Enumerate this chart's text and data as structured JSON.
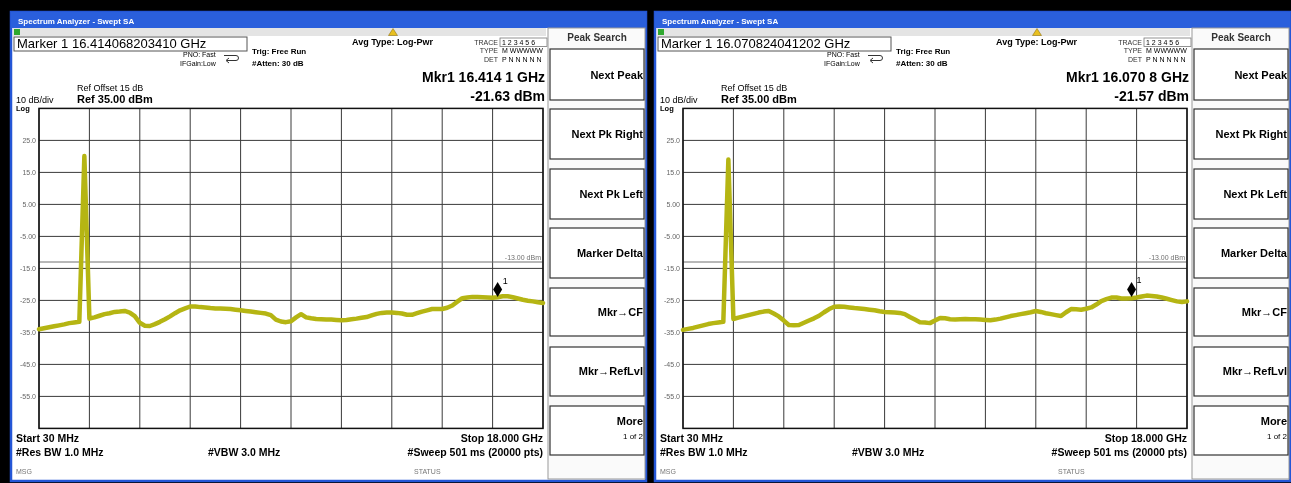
{
  "chart_data": [
    {
      "type": "line",
      "title": "Spectrum Analyzer - Swept SA",
      "ylim": [
        -65,
        35
      ],
      "categories": [
        null,
        null,
        null,
        null,
        null,
        null,
        null,
        null,
        null,
        null,
        null,
        null,
        null,
        null,
        null,
        null,
        null,
        null,
        null,
        null,
        null,
        null,
        null,
        null,
        null,
        null,
        null,
        null,
        null,
        null,
        null,
        null,
        null,
        null,
        null,
        null,
        null,
        null,
        null,
        null,
        null,
        null,
        null,
        null,
        null,
        null,
        null,
        null,
        null,
        null,
        null,
        null,
        null,
        null,
        null,
        null,
        null,
        null,
        null,
        null,
        null,
        null,
        null,
        null,
        null,
        null,
        null,
        null,
        null,
        null,
        null,
        null,
        null,
        null,
        null,
        null,
        null,
        null,
        null,
        null,
        null,
        null,
        null,
        null,
        null,
        null,
        null,
        null,
        null,
        null,
        null,
        null,
        null,
        null,
        null,
        null,
        null,
        null,
        null,
        null,
        null
      ],
      "yticks": [
        {
          "value": 25,
          "label": "25.0"
        },
        {
          "value": 15,
          "label": "15.0"
        },
        {
          "value": 5,
          "label": "5.00"
        },
        {
          "value": -5,
          "label": "-5.00"
        },
        {
          "value": -15,
          "label": "-15.0"
        },
        {
          "value": -25,
          "label": "-25.0"
        },
        {
          "value": -35,
          "label": "-35.0"
        },
        {
          "value": -45,
          "label": "-45.0"
        },
        {
          "value": -55,
          "label": "-55.0"
        }
      ],
      "grid": true,
      "tick_labels": "y",
      "series": [
        {
          "color": "#b5b513",
          "values": [
            -34.0,
            -33.7,
            -33.4,
            -33.1,
            -32.8,
            -32.5,
            -32.1,
            -31.9,
            -31.7,
            20.1,
            -30.7,
            -30.3,
            -29.8,
            -29.3,
            -29.0,
            -28.6,
            -28.5,
            -28.3,
            -28.8,
            -29.9,
            -32.0,
            -32.9,
            -33.0,
            -32.4,
            -31.7,
            -30.9,
            -30.0,
            -29.0,
            -28.1,
            -27.5,
            -26.9,
            -26.9,
            -27.1,
            -27.2,
            -27.4,
            -27.5,
            -27.5,
            -27.6,
            -27.7,
            -27.9,
            -28.1,
            -28.3,
            -28.5,
            -28.7,
            -28.9,
            -29.1,
            -29.6,
            -31.0,
            -31.6,
            -31.8,
            -31.5,
            -30.3,
            -29.3,
            -30.3,
            -30.6,
            -30.8,
            -30.9,
            -31.0,
            -31.0,
            -31.1,
            -31.2,
            -31.1,
            -30.9,
            -30.7,
            -30.4,
            -30.2,
            -29.7,
            -29.2,
            -28.9,
            -28.8,
            -28.8,
            -28.9,
            -29.1,
            -29.5,
            -29.5,
            -29.0,
            -28.5,
            -28.1,
            -27.7,
            -27.7,
            -27.7,
            -27.3,
            -26.6,
            -25.4,
            -24.3,
            -24.1,
            -23.9,
            -23.9,
            -24.0,
            -24.1,
            -24.2,
            -24.0,
            -23.7,
            -23.7,
            -24.0,
            -24.4,
            -24.8,
            -25.1,
            -25.3,
            -25.6,
            -25.8
          ]
        },
        {
          "type": "scatter",
          "name": "1",
          "color": "#000000",
          "marker": "diamond",
          "values": [
            null,
            null,
            null,
            null,
            null,
            null,
            null,
            null,
            null,
            null,
            null,
            null,
            null,
            null,
            null,
            null,
            null,
            null,
            null,
            null,
            null,
            null,
            null,
            null,
            null,
            null,
            null,
            null,
            null,
            null,
            null,
            null,
            null,
            null,
            null,
            null,
            null,
            null,
            null,
            null,
            null,
            null,
            null,
            null,
            null,
            null,
            null,
            null,
            null,
            null,
            null,
            null,
            null,
            null,
            null,
            null,
            null,
            null,
            null,
            null,
            null,
            null,
            null,
            null,
            null,
            null,
            null,
            null,
            null,
            null,
            null,
            null,
            null,
            null,
            null,
            null,
            null,
            null,
            null,
            null,
            null,
            null,
            null,
            null,
            null,
            null,
            null,
            null,
            null,
            null,
            null,
            -21.63,
            null,
            null,
            null,
            null,
            null,
            null,
            null,
            null,
            null
          ]
        }
      ],
      "ref_lines": [
        {
          "axis": "y",
          "value": -13,
          "label": "-13.00 dBm",
          "color": "#707070"
        }
      ],
      "annotations": [
        "Marker 1 16.414068203410 GHz",
        "PNO: Fast",
        "IFGain:Low",
        "Trig: Free Run",
        "#Atten: 30 dB",
        "Avg Type: Log-Pwr",
        "TRACE",
        "1 2 3 4 5 6",
        "TYPE",
        "M WWWWW",
        "DET",
        "P N N N N N",
        "Ref Offset 15 dB",
        "10 dB/div",
        "Ref 35.00 dBm",
        "Log",
        "Mkr1 16.414 1 GHz",
        "-21.63 dBm",
        "Start 30 MHz",
        "Stop 18.000 GHz",
        "#Res BW 1.0 MHz",
        "#VBW 3.0 MHz",
        "#Sweep  501 ms (20000 pts)",
        "MSG",
        "STATUS",
        "Peak Search",
        "Next Peak",
        "Next Pk Right",
        "Next Pk Left",
        "Marker Delta",
        "Mkr→CF",
        "Mkr→RefLvl",
        "More",
        "1 of 2"
      ]
    },
    {
      "type": "line",
      "title": "Spectrum Analyzer - Swept SA",
      "ylim": [
        -65,
        35
      ],
      "categories": [
        null,
        null,
        null,
        null,
        null,
        null,
        null,
        null,
        null,
        null,
        null,
        null,
        null,
        null,
        null,
        null,
        null,
        null,
        null,
        null,
        null,
        null,
        null,
        null,
        null,
        null,
        null,
        null,
        null,
        null,
        null,
        null,
        null,
        null,
        null,
        null,
        null,
        null,
        null,
        null,
        null,
        null,
        null,
        null,
        null,
        null,
        null,
        null,
        null,
        null,
        null,
        null,
        null,
        null,
        null,
        null,
        null,
        null,
        null,
        null,
        null,
        null,
        null,
        null,
        null,
        null,
        null,
        null,
        null,
        null,
        null,
        null,
        null,
        null,
        null,
        null,
        null,
        null,
        null,
        null,
        null,
        null,
        null,
        null,
        null,
        null,
        null,
        null,
        null,
        null,
        null,
        null,
        null,
        null,
        null,
        null,
        null,
        null,
        null,
        null,
        null
      ],
      "yticks": [
        {
          "value": 25,
          "label": "25.0"
        },
        {
          "value": 15,
          "label": "15.0"
        },
        {
          "value": 5,
          "label": "5.00"
        },
        {
          "value": -5,
          "label": "-5.00"
        },
        {
          "value": -15,
          "label": "-15.0"
        },
        {
          "value": -25,
          "label": "-25.0"
        },
        {
          "value": -35,
          "label": "-35.0"
        },
        {
          "value": -45,
          "label": "-45.0"
        },
        {
          "value": -55,
          "label": "-55.0"
        }
      ],
      "grid": true,
      "tick_labels": "y",
      "series": [
        {
          "color": "#b5b513",
          "values": [
            -34.2,
            -33.9,
            -33.6,
            -33.2,
            -32.8,
            -32.4,
            -32.1,
            -31.9,
            -31.7,
            19.0,
            -30.8,
            -30.4,
            -30.0,
            -29.6,
            -29.2,
            -28.8,
            -28.5,
            -28.3,
            -29.1,
            -30.0,
            -31.3,
            -32.7,
            -32.8,
            -32.7,
            -32.0,
            -31.3,
            -30.6,
            -29.8,
            -28.7,
            -27.7,
            -27.0,
            -26.9,
            -27.0,
            -27.2,
            -27.4,
            -27.5,
            -27.7,
            -27.9,
            -28.1,
            -28.4,
            -28.6,
            -28.7,
            -28.8,
            -28.9,
            -29.3,
            -30.2,
            -31.0,
            -31.8,
            -31.9,
            -32.1,
            -31.3,
            -30.5,
            -30.6,
            -30.9,
            -31.0,
            -30.9,
            -30.8,
            -30.9,
            -30.9,
            -31.0,
            -31.1,
            -31.2,
            -31.0,
            -30.7,
            -30.3,
            -29.9,
            -29.6,
            -29.3,
            -29.0,
            -28.7,
            -28.3,
            -28.6,
            -29.0,
            -29.3,
            -29.6,
            -29.9,
            -28.7,
            -27.7,
            -27.8,
            -27.9,
            -27.6,
            -27.2,
            -26.3,
            -25.2,
            -24.6,
            -24.1,
            -24.1,
            -24.4,
            -24.4,
            -24.3,
            -24.1,
            -23.8,
            -23.5,
            -23.6,
            -23.8,
            -24.1,
            -24.5,
            -24.9,
            -25.3,
            -25.5,
            -25.3
          ]
        },
        {
          "type": "scatter",
          "name": "1",
          "color": "#000000",
          "marker": "diamond",
          "values": [
            null,
            null,
            null,
            null,
            null,
            null,
            null,
            null,
            null,
            null,
            null,
            null,
            null,
            null,
            null,
            null,
            null,
            null,
            null,
            null,
            null,
            null,
            null,
            null,
            null,
            null,
            null,
            null,
            null,
            null,
            null,
            null,
            null,
            null,
            null,
            null,
            null,
            null,
            null,
            null,
            null,
            null,
            null,
            null,
            null,
            null,
            null,
            null,
            null,
            null,
            null,
            null,
            null,
            null,
            null,
            null,
            null,
            null,
            null,
            null,
            null,
            null,
            null,
            null,
            null,
            null,
            null,
            null,
            null,
            null,
            null,
            null,
            null,
            null,
            null,
            null,
            null,
            null,
            null,
            null,
            null,
            null,
            null,
            null,
            null,
            null,
            null,
            null,
            null,
            -21.57,
            null,
            null,
            null,
            null,
            null,
            null,
            null,
            null,
            null,
            null,
            null
          ]
        }
      ],
      "ref_lines": [
        {
          "axis": "y",
          "value": -13,
          "label": "-13.00 dBm",
          "color": "#707070"
        }
      ],
      "annotations": [
        "Marker 1 16.070824041202 GHz",
        "PNO: Fast",
        "IFGain:Low",
        "Trig: Free Run",
        "#Atten: 30 dB",
        "Avg Type: Log-Pwr",
        "TRACE",
        "1 2 3 4 5 6",
        "TYPE",
        "M WWWWW",
        "DET",
        "P N N N N N",
        "Ref Offset 15 dB",
        "10 dB/div",
        "Ref 35.00 dBm",
        "Log",
        "Mkr1 16.070 8 GHz",
        "-21.57 dBm",
        "Start 30 MHz",
        "Stop 18.000 GHz",
        "#Res BW 1.0 MHz",
        "#VBW 3.0 MHz",
        "#Sweep  501 ms (20000 pts)",
        "MSG",
        "STATUS",
        "Peak Search",
        "Next Peak",
        "Next Pk Right",
        "Next Pk Left",
        "Marker Delta",
        "Mkr→CF",
        "Mkr→RefLvl",
        "More",
        "1 of 2"
      ]
    }
  ]
}
